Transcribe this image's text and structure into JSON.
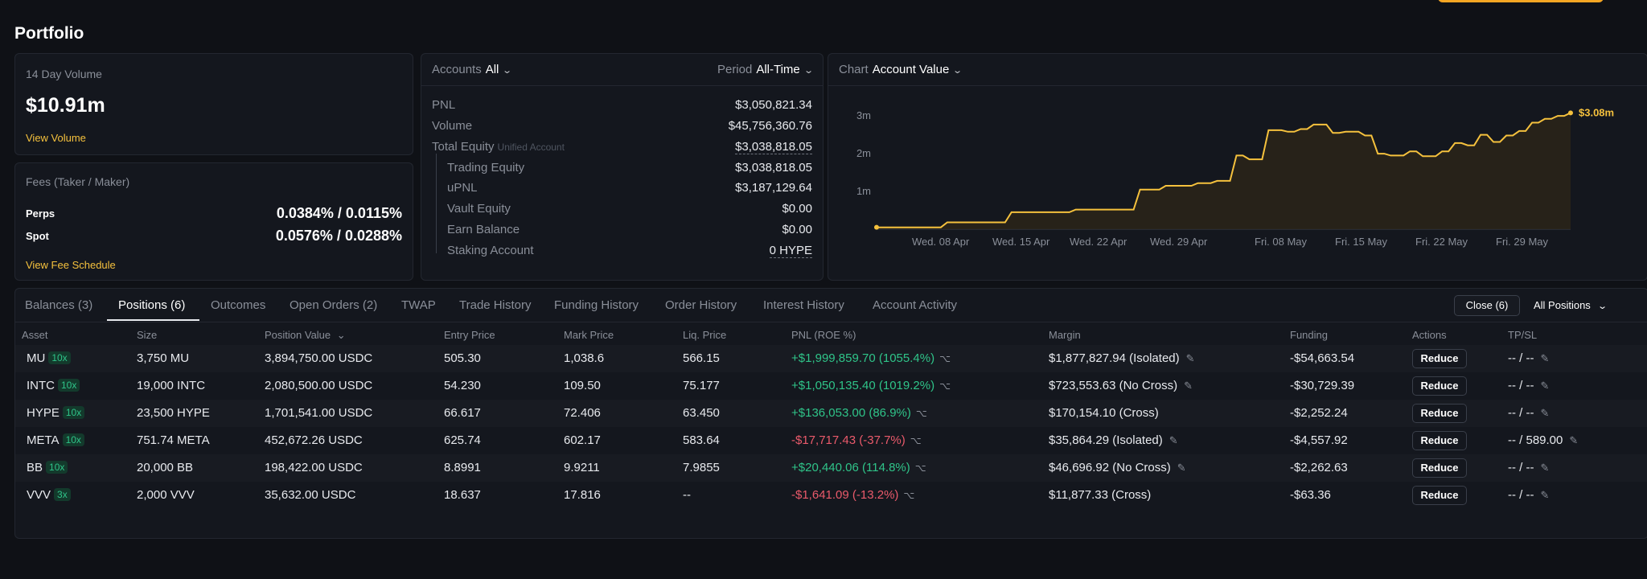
{
  "page": {
    "title": "Portfolio"
  },
  "volume": {
    "label": "14 Day Volume",
    "value": "$10.91m",
    "link": "View Volume"
  },
  "fees": {
    "label": "Fees (Taker / Maker)",
    "rows": [
      {
        "name": "Perps",
        "value": "0.0384% / 0.0115%"
      },
      {
        "name": "Spot",
        "value": "0.0576% / 0.0288%"
      }
    ],
    "link": "View Fee Schedule"
  },
  "accounts": {
    "selector_label": "Accounts",
    "selector_value": "All",
    "period_label": "Period",
    "period_value": "All-Time",
    "pnl": {
      "label": "PNL",
      "value": "$3,050,821.34"
    },
    "volume": {
      "label": "Volume",
      "value": "$45,756,360.76"
    },
    "total_equity": {
      "label": "Total Equity",
      "sub": "Unified Account",
      "value": "$3,038,818.05"
    },
    "trading_equity": {
      "label": "Trading Equity",
      "value": "$3,038,818.05"
    },
    "upnl": {
      "label": "uPNL",
      "value": "$3,187,129.64"
    },
    "vault_equity": {
      "label": "Vault Equity",
      "value": "$0.00"
    },
    "earn_balance": {
      "label": "Earn Balance",
      "value": "$0.00"
    },
    "staking": {
      "label": "Staking Account",
      "value": "0 HYPE"
    }
  },
  "chart": {
    "selector_label": "Chart",
    "selector_value": "Account Value",
    "y_ticks": [
      "3m",
      "2m",
      "1m"
    ],
    "x_ticks": [
      "Wed. 08 Apr",
      "Wed. 15 Apr",
      "Wed. 22 Apr",
      "Wed. 29 Apr",
      "Fri. 08 May",
      "Fri. 15 May",
      "Fri. 22 May",
      "Fri. 29 May"
    ],
    "last_label": "$3.08m",
    "line_color": "#f5c13d"
  },
  "chart_data": {
    "type": "line",
    "title": "",
    "xlabel": "",
    "ylabel": "",
    "ylim": [
      0,
      3.3
    ],
    "y_unit": "m",
    "x_ticks": [
      "Wed. 08 Apr",
      "Wed. 15 Apr",
      "Wed. 22 Apr",
      "Wed. 29 Apr",
      "Fri. 08 May",
      "Fri. 15 May",
      "Fri. 22 May",
      "Fri. 29 May"
    ],
    "series": [
      {
        "x": [
          0,
          1,
          10,
          11,
          20,
          21,
          30,
          31,
          40,
          41,
          44,
          45,
          49,
          50,
          52,
          53,
          55,
          56,
          57,
          58,
          60,
          61,
          63,
          64,
          65,
          66,
          67,
          68,
          70,
          71,
          72,
          73,
          75,
          76,
          77,
          78,
          79,
          80,
          82,
          83,
          84,
          85,
          87,
          88,
          89,
          90,
          91,
          92,
          93,
          94,
          95,
          96,
          97,
          98,
          99,
          100,
          101,
          102,
          103,
          104,
          105,
          106,
          107,
          108
        ],
        "y": [
          0.05,
          0.05,
          0.05,
          0.18,
          0.18,
          0.45,
          0.45,
          0.52,
          0.52,
          1.05,
          1.05,
          1.15,
          1.15,
          1.22,
          1.22,
          1.28,
          1.28,
          1.95,
          1.95,
          1.85,
          1.85,
          2.62,
          2.62,
          2.58,
          2.58,
          2.65,
          2.65,
          2.77,
          2.77,
          2.55,
          2.55,
          2.58,
          2.58,
          2.48,
          2.48,
          2.0,
          2.0,
          1.95,
          1.95,
          2.06,
          2.06,
          1.93,
          1.93,
          2.06,
          2.06,
          2.28,
          2.28,
          2.22,
          2.22,
          2.5,
          2.5,
          2.31,
          2.31,
          2.48,
          2.48,
          2.6,
          2.6,
          2.82,
          2.82,
          2.92,
          2.92,
          3.0,
          3.0,
          3.08
        ]
      }
    ]
  },
  "tabs": [
    {
      "label": "Balances (3)",
      "active": false
    },
    {
      "label": "Positions (6)",
      "active": true
    },
    {
      "label": "Outcomes",
      "active": false
    },
    {
      "label": "Open Orders (2)",
      "active": false
    },
    {
      "label": "TWAP",
      "active": false
    },
    {
      "label": "Trade History",
      "active": false
    },
    {
      "label": "Funding History",
      "active": false
    },
    {
      "label": "Order History",
      "active": false
    },
    {
      "label": "Interest History",
      "active": false
    },
    {
      "label": "Account Activity",
      "active": false
    }
  ],
  "table_controls": {
    "close": "Close (6)",
    "filter": "All Positions"
  },
  "columns": [
    "Asset",
    "Size",
    "Position Value",
    "Entry Price",
    "Mark Price",
    "Liq. Price",
    "PNL (ROE %)",
    "Margin",
    "Funding",
    "Actions",
    "TP/SL"
  ],
  "positions": [
    {
      "asset": "MU",
      "lev": "10x",
      "size": "3,750 MU",
      "value": "3,894,750.00 USDC",
      "entry": "505.30",
      "mark": "1,038.6",
      "liq": "566.15",
      "pnl": "+$1,999,859.70 (1055.4%)",
      "pnl_positive": true,
      "margin": "$1,877,827.94 (Isolated)",
      "margin_edit": true,
      "funding": "-$54,663.54",
      "action": "Reduce",
      "tpsl": "-- / --"
    },
    {
      "asset": "INTC",
      "lev": "10x",
      "size": "19,000 INTC",
      "value": "2,080,500.00 USDC",
      "entry": "54.230",
      "mark": "109.50",
      "liq": "75.177",
      "pnl": "+$1,050,135.40 (1019.2%)",
      "pnl_positive": true,
      "margin": "$723,553.63 (No Cross)",
      "margin_edit": true,
      "funding": "-$30,729.39",
      "action": "Reduce",
      "tpsl": "-- / --"
    },
    {
      "asset": "HYPE",
      "lev": "10x",
      "size": "23,500 HYPE",
      "value": "1,701,541.00 USDC",
      "entry": "66.617",
      "mark": "72.406",
      "liq": "63.450",
      "pnl": "+$136,053.00 (86.9%)",
      "pnl_positive": true,
      "margin": "$170,154.10 (Cross)",
      "margin_edit": false,
      "funding": "-$2,252.24",
      "action": "Reduce",
      "tpsl": "-- / --"
    },
    {
      "asset": "META",
      "lev": "10x",
      "size": "751.74 META",
      "value": "452,672.26 USDC",
      "entry": "625.74",
      "mark": "602.17",
      "liq": "583.64",
      "pnl": "-$17,717.43 (-37.7%)",
      "pnl_positive": false,
      "margin": "$35,864.29 (Isolated)",
      "margin_edit": true,
      "funding": "-$4,557.92",
      "action": "Reduce",
      "tpsl": "-- / 589.00"
    },
    {
      "asset": "BB",
      "lev": "10x",
      "size": "20,000 BB",
      "value": "198,422.00 USDC",
      "entry": "8.8991",
      "mark": "9.9211",
      "liq": "7.9855",
      "pnl": "+$20,440.06 (114.8%)",
      "pnl_positive": true,
      "margin": "$46,696.92 (No Cross)",
      "margin_edit": true,
      "funding": "-$2,262.63",
      "action": "Reduce",
      "tpsl": "-- / --"
    },
    {
      "asset": "VVV",
      "lev": "3x",
      "size": "2,000 VVV",
      "value": "35,632.00 USDC",
      "entry": "18.637",
      "mark": "17.816",
      "liq": "--",
      "pnl": "-$1,641.09 (-13.2%)",
      "pnl_positive": false,
      "margin": "$11,877.33 (Cross)",
      "margin_edit": false,
      "funding": "-$63.36",
      "action": "Reduce",
      "tpsl": "-- / --"
    }
  ]
}
